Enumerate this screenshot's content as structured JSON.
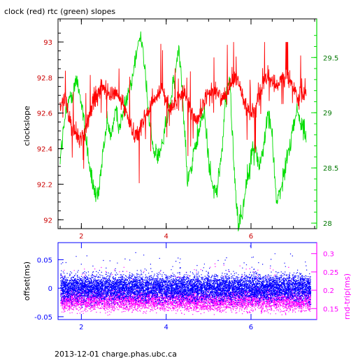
{
  "title": "clock (red) rtc (green) slopes",
  "footer": "2013-12-01 charge.phas.ubc.ca",
  "colors": {
    "red": "#ff0000",
    "green": "#00dd00",
    "blue": "#0000ff",
    "magenta": "#ff00ff",
    "darkred": "#cc0000",
    "axis": "#000000"
  },
  "chart_data": [
    {
      "type": "line",
      "title": "clock (red) rtc (green) slopes",
      "xlabel": "",
      "ylabel": "clockslope",
      "xlim": [
        1.45,
        7.55
      ],
      "ylim": [
        91.95,
        93.13
      ],
      "y2lim": [
        27.95,
        29.85
      ],
      "xticks": [
        "2",
        "4",
        "6"
      ],
      "yticks": [
        "92",
        "92.2",
        "92.4",
        "92.6",
        "92.8",
        "93"
      ],
      "y2ticks": [
        "28",
        "28.5",
        "29",
        "29.5"
      ],
      "series": [
        {
          "name": "clock (red)",
          "axis": "left",
          "color": "#ff0000",
          "x": [
            1.5,
            1.6,
            1.7,
            1.8,
            1.9,
            2.0,
            2.1,
            2.2,
            2.3,
            2.4,
            2.5,
            2.6,
            2.7,
            2.8,
            2.9,
            3.0,
            3.1,
            3.2,
            3.3,
            3.4,
            3.5,
            3.6,
            3.7,
            3.8,
            3.9,
            4.0,
            4.1,
            4.2,
            4.3,
            4.4,
            4.5,
            4.6,
            4.7,
            4.8,
            4.9,
            5.0,
            5.1,
            5.2,
            5.3,
            5.4,
            5.5,
            5.6,
            5.7,
            5.8,
            5.9,
            6.0,
            6.1,
            6.2,
            6.3,
            6.4,
            6.5,
            6.6,
            6.7,
            6.8,
            6.9,
            7.0,
            7.1,
            7.2,
            7.3
          ],
          "y": [
            92.62,
            92.7,
            92.58,
            92.5,
            92.48,
            92.46,
            92.5,
            92.6,
            92.66,
            92.72,
            92.75,
            92.72,
            92.7,
            92.72,
            92.68,
            92.64,
            92.58,
            92.5,
            92.48,
            92.52,
            92.58,
            92.62,
            92.66,
            92.7,
            92.74,
            92.68,
            92.62,
            92.64,
            92.68,
            92.72,
            92.68,
            92.6,
            92.56,
            92.6,
            92.66,
            92.7,
            92.74,
            92.72,
            92.68,
            92.7,
            92.76,
            92.8,
            92.78,
            92.7,
            92.62,
            92.6,
            92.64,
            92.7,
            92.76,
            92.8,
            92.78,
            92.74,
            92.8,
            92.82,
            92.78,
            92.74,
            92.68,
            92.7,
            92.72
          ]
        },
        {
          "name": "rtc (green)",
          "axis": "right",
          "color": "#00dd00",
          "x": [
            1.5,
            1.6,
            1.7,
            1.8,
            1.9,
            2.0,
            2.1,
            2.2,
            2.3,
            2.4,
            2.5,
            2.6,
            2.7,
            2.8,
            2.9,
            3.0,
            3.1,
            3.2,
            3.3,
            3.4,
            3.5,
            3.6,
            3.7,
            3.8,
            3.9,
            4.0,
            4.1,
            4.2,
            4.3,
            4.4,
            4.5,
            4.6,
            4.7,
            4.8,
            4.9,
            5.0,
            5.1,
            5.2,
            5.3,
            5.4,
            5.5,
            5.6,
            5.7,
            5.8,
            5.9,
            6.0,
            6.1,
            6.2,
            6.3,
            6.4,
            6.5,
            6.6,
            6.7,
            6.8,
            6.9,
            7.0,
            7.1,
            7.2,
            7.3
          ],
          "y": [
            28.6,
            28.9,
            29.1,
            29.2,
            29.3,
            29.1,
            28.8,
            28.5,
            28.3,
            28.2,
            28.6,
            28.9,
            28.8,
            29.0,
            28.9,
            29.0,
            29.2,
            29.3,
            29.6,
            29.7,
            29.4,
            28.9,
            28.7,
            28.6,
            28.7,
            28.9,
            29.1,
            29.3,
            29.6,
            29.1,
            28.4,
            28.5,
            28.7,
            28.9,
            29.0,
            28.6,
            28.3,
            28.3,
            28.6,
            29.1,
            29.3,
            28.5,
            28.0,
            28.1,
            28.4,
            28.6,
            28.7,
            28.5,
            28.7,
            29.0,
            28.8,
            28.2,
            28.3,
            28.5,
            28.7,
            28.9,
            29.0,
            28.9,
            28.8
          ]
        }
      ]
    },
    {
      "type": "scatter",
      "xlabel": "",
      "ylabel": "offset(ms)",
      "y2label": "rnd-trip(ms)",
      "xlim": [
        1.45,
        7.55
      ],
      "ylim": [
        -0.055,
        0.08
      ],
      "y2lim": [
        0.12,
        0.33
      ],
      "xticks": [
        "2",
        "4",
        "6"
      ],
      "yticks": [
        "-0.05",
        "0",
        "0.05"
      ],
      "y2ticks": [
        "0.15",
        "0.2",
        "0.25",
        "0.3"
      ],
      "series": [
        {
          "name": "offset(ms)",
          "axis": "left",
          "color": "#0000ff",
          "x_range": [
            1.5,
            7.4
          ],
          "center": 0.0,
          "spread": 0.02
        },
        {
          "name": "rnd-trip(ms)",
          "axis": "right",
          "color": "#ff00ff",
          "x_range": [
            1.5,
            7.4
          ],
          "center": 0.172,
          "spread": 0.02
        }
      ]
    }
  ]
}
